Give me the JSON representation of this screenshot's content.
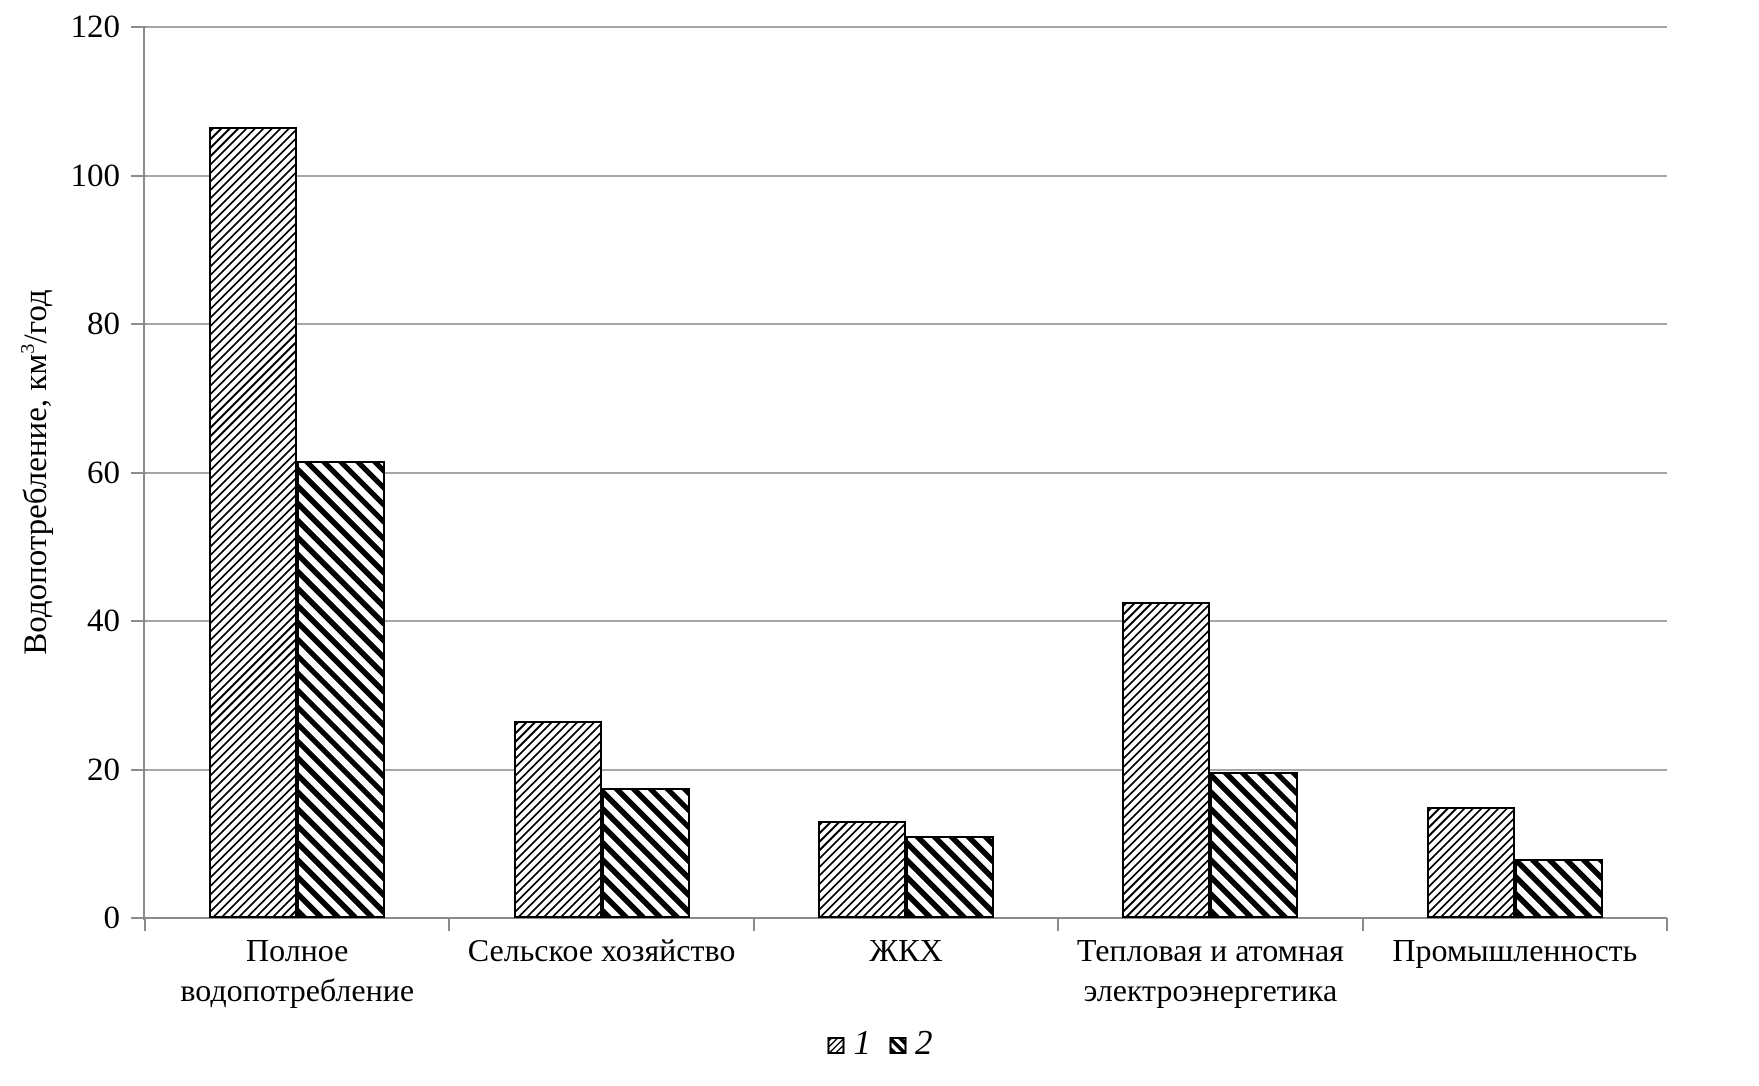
{
  "chart_data": {
    "type": "bar",
    "title": "",
    "ylabel": "Водопотребление, км³/год",
    "ylabel_parts": {
      "prefix": "Водопотребление, км",
      "sup": "3",
      "suffix": "/год"
    },
    "xlabel": "",
    "ylim": [
      0,
      120
    ],
    "yticks": [
      0,
      20,
      40,
      60,
      80,
      100,
      120
    ],
    "grid": "horizontal",
    "legend_position": "bottom-center",
    "categories": [
      "Полное водопотребление",
      "Сельское хозяйство",
      "ЖКХ",
      "Тепловая и атомная электроэнергетика",
      "Промышленность"
    ],
    "series": [
      {
        "name": "1",
        "hatch": "thin-forward-diagonal",
        "values": [
          106.5,
          26.5,
          13,
          42.5,
          15
        ]
      },
      {
        "name": "2",
        "hatch": "thick-backward-diagonal",
        "values": [
          61.5,
          17.5,
          11,
          19.7,
          8
        ]
      }
    ],
    "colors": {
      "background": "#ffffff",
      "bar_fill": "#ffffff",
      "bar_stroke": "#000000",
      "gridline": "#a6a6a6",
      "axis": "#8c8c8c",
      "text": "#000000"
    }
  }
}
